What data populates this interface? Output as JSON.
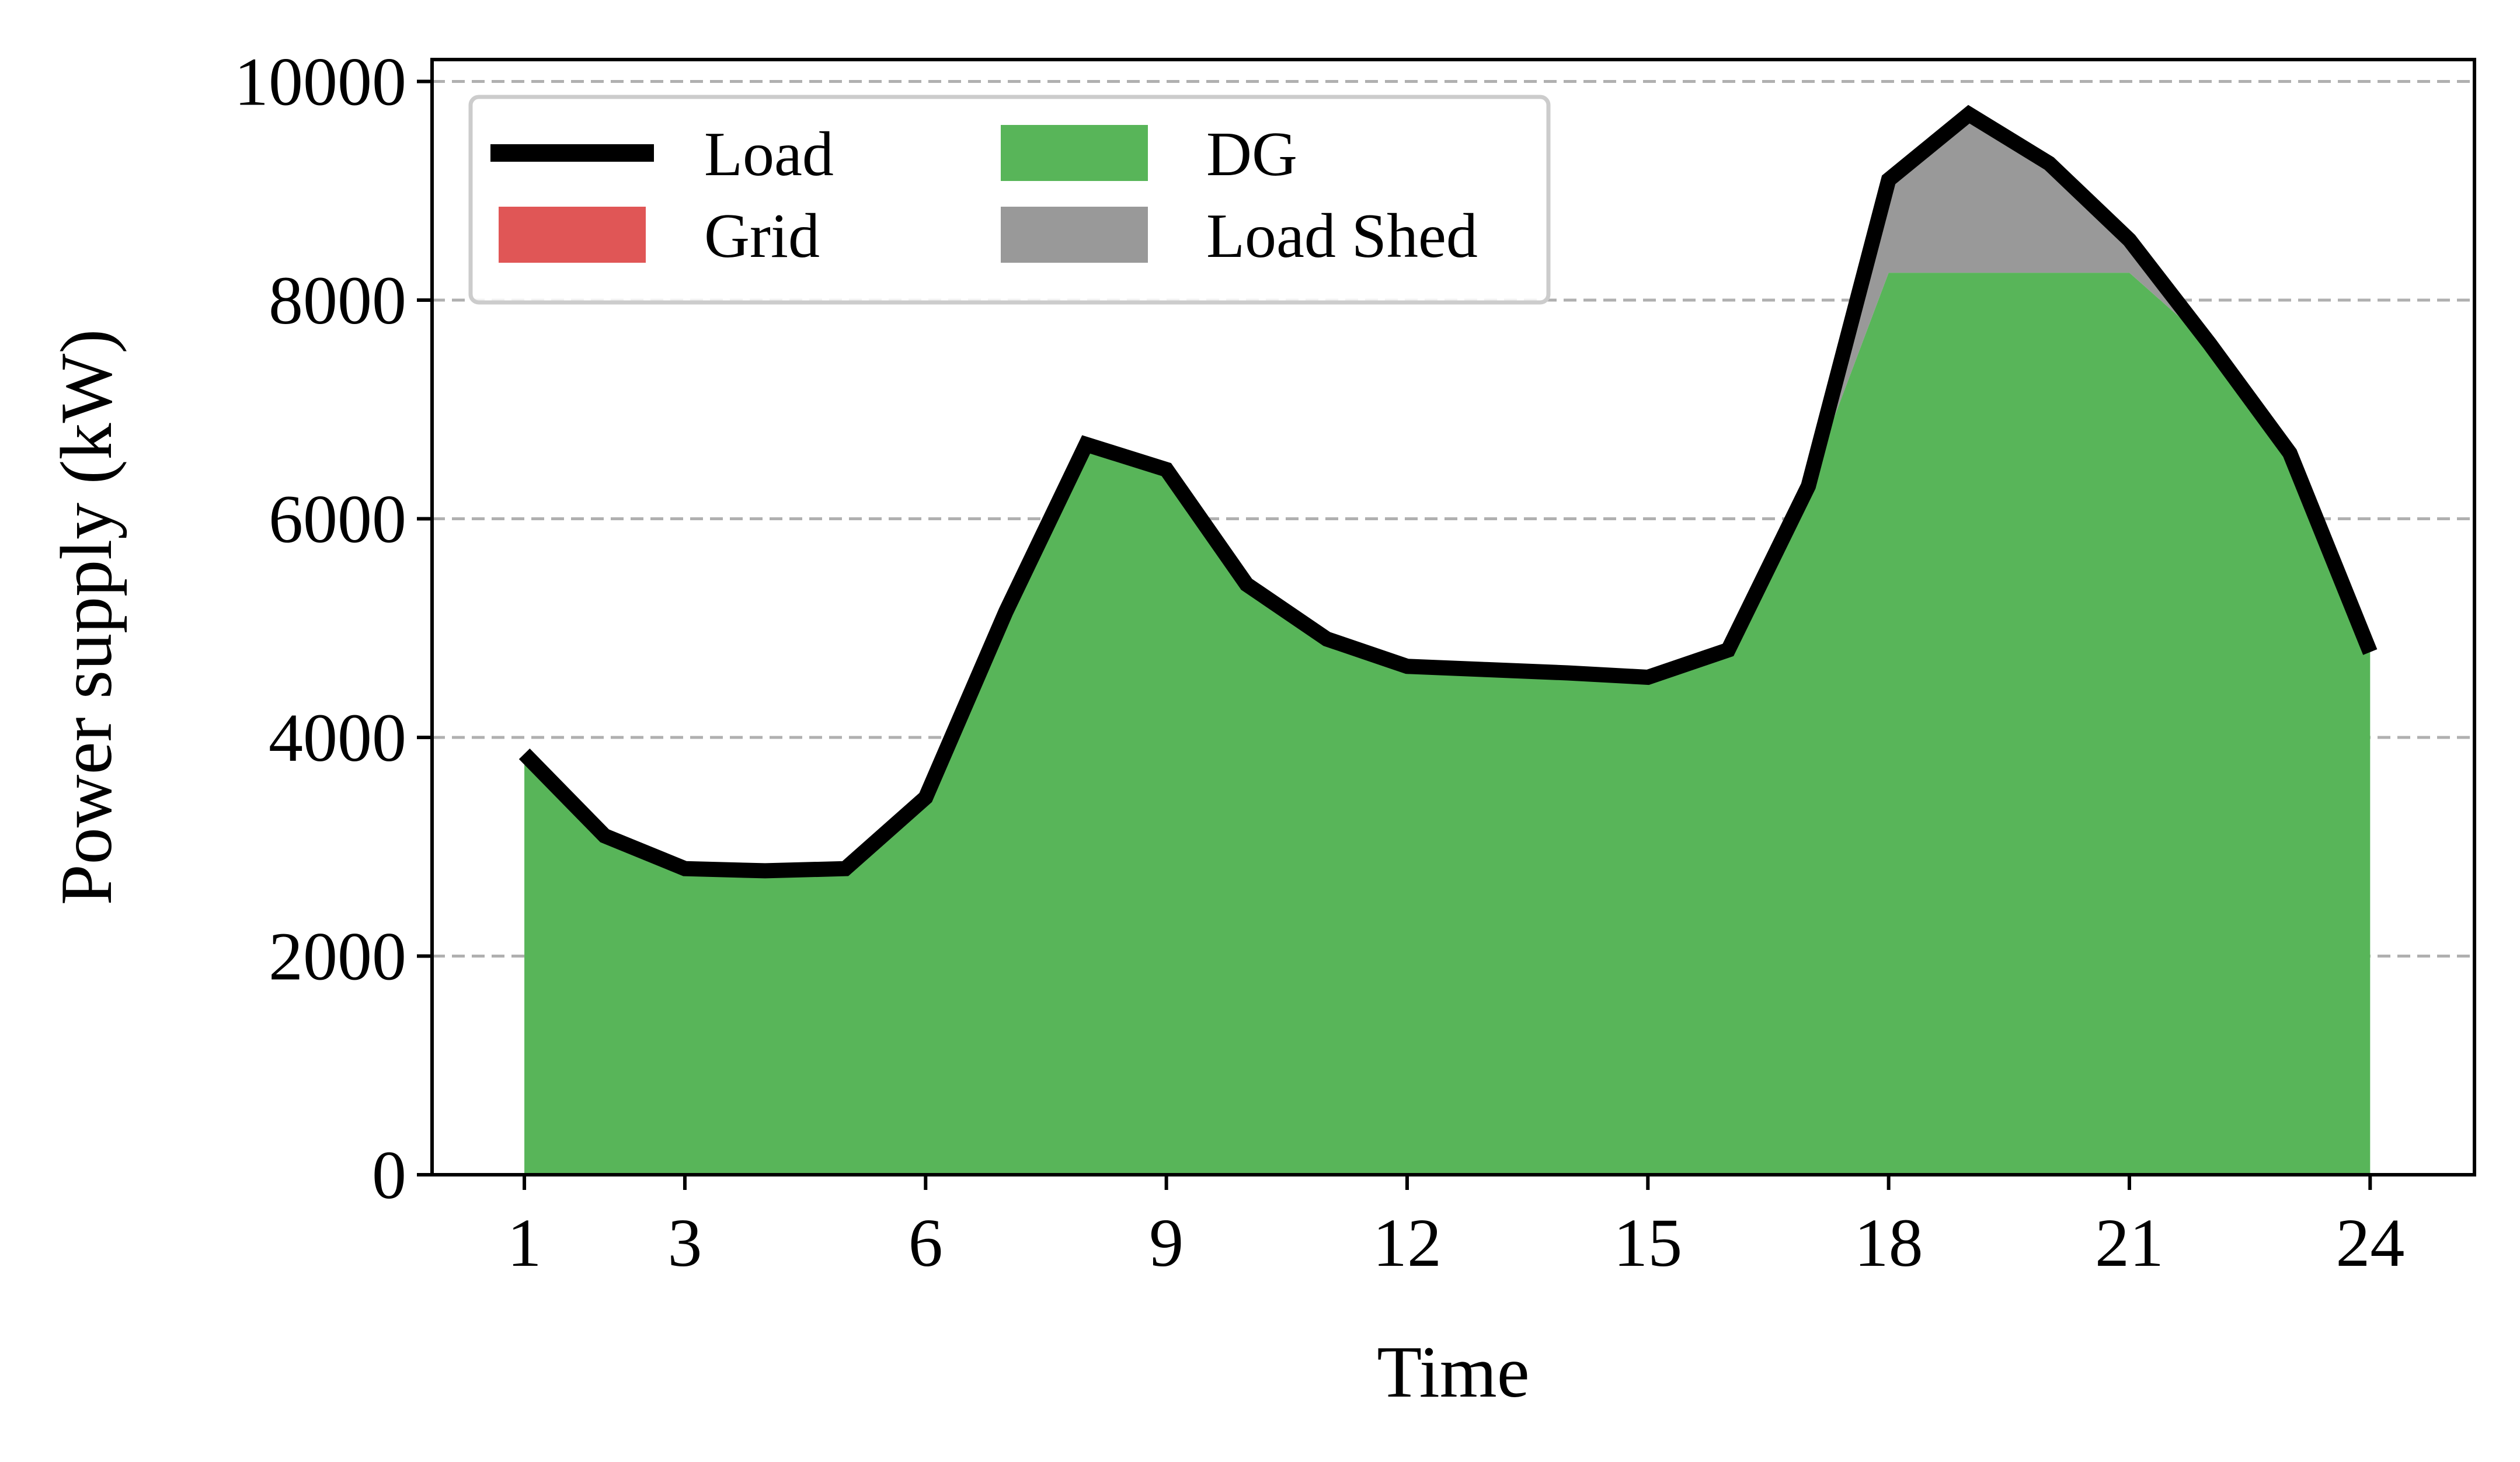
{
  "chart_data": {
    "type": "area",
    "xlabel": "Time",
    "ylabel": "Power supply (kW)",
    "xlim": [
      -0.15,
      25.3
    ],
    "ylim": [
      0,
      10200
    ],
    "x_ticks": [
      1,
      3,
      6,
      9,
      12,
      15,
      18,
      21,
      24
    ],
    "y_ticks": [
      0,
      2000,
      4000,
      6000,
      8000,
      10000
    ],
    "grid": "y-dashed",
    "legend_position": "upper-left",
    "x": [
      1,
      2,
      3,
      4,
      5,
      6,
      7,
      8,
      9,
      10,
      11,
      12,
      13,
      14,
      15,
      16,
      17,
      18,
      19,
      20,
      21,
      22,
      23,
      24
    ],
    "series": [
      {
        "name": "Load",
        "kind": "line",
        "color": "#000000",
        "values": [
          3850,
          3100,
          2800,
          2780,
          2800,
          3450,
          5150,
          6680,
          6450,
          5400,
          4900,
          4650,
          4620,
          4590,
          4550,
          4800,
          6300,
          9100,
          9700,
          9250,
          8550,
          7600,
          6600,
          4780
        ]
      },
      {
        "name": "Grid",
        "kind": "area",
        "color": "#e05656",
        "values": [
          0,
          0,
          0,
          0,
          0,
          0,
          0,
          0,
          0,
          0,
          0,
          0,
          0,
          0,
          0,
          0,
          0,
          0,
          0,
          0,
          0,
          0,
          0,
          0
        ]
      },
      {
        "name": "DG",
        "kind": "area",
        "color": "#58b559",
        "values": [
          3850,
          3100,
          2800,
          2780,
          2800,
          3450,
          5150,
          6680,
          6450,
          5400,
          4900,
          4650,
          4620,
          4590,
          4550,
          4800,
          6300,
          8250,
          8250,
          8250,
          8250,
          7600,
          6600,
          4780
        ]
      },
      {
        "name": "Load Shed",
        "kind": "area",
        "color": "#999999",
        "values": [
          0,
          0,
          0,
          0,
          0,
          0,
          0,
          0,
          0,
          0,
          0,
          0,
          0,
          0,
          0,
          0,
          0,
          850,
          1450,
          1000,
          300,
          0,
          0,
          0
        ]
      }
    ]
  }
}
